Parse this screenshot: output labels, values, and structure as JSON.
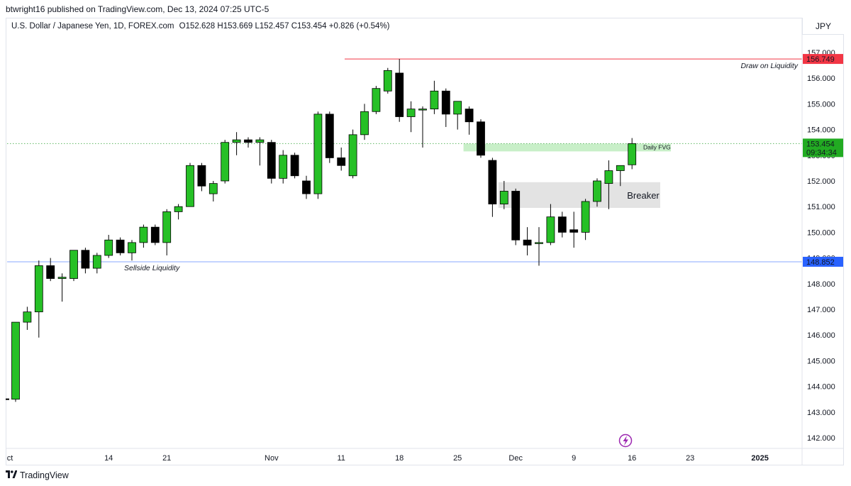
{
  "header": {
    "publisher": "btwright16 published on TradingView.com, Dec 13, 2024 07:25 UTC-5",
    "symbol": "U.S. Dollar / Japanese Yen, 1D, FOREX.com",
    "ohlc": {
      "o_label": "O",
      "o": "152.628",
      "h_label": "H",
      "h": "153.669",
      "l_label": "L",
      "l": "152.457",
      "c_label": "C",
      "c": "153.454",
      "change": "+0.826 (+0.54%)"
    },
    "currency": "JPY"
  },
  "footer": {
    "brand": "TradingView",
    "logo_icon": "tradingview-logo-icon"
  },
  "colors": {
    "up": "#26c026",
    "down": "#000000",
    "red_line": "#f23645",
    "blue_line": "#2962ff",
    "green_dotted": "#4caf50",
    "fvg_fill": "#c8efc8",
    "breaker_fill": "#e3e3e3",
    "lightning": "#9c27b0"
  },
  "chart_data": {
    "type": "candlestick",
    "ylim": [
      141.6,
      157.5
    ],
    "yticks": [
      142,
      143,
      144,
      145,
      146,
      147,
      148,
      149,
      150,
      151,
      152,
      153,
      154,
      155,
      156,
      157
    ],
    "ytick_labels": [
      "142.000",
      "143.000",
      "144.000",
      "145.000",
      "146.000",
      "147.000",
      "148.000",
      "149.000",
      "150.000",
      "151.000",
      "152.000",
      "153.000",
      "154.000",
      "155.000",
      "156.000",
      "157.000"
    ],
    "x_labels": [
      {
        "label": "ct",
        "index": -1
      },
      {
        "label": "14",
        "index": 8
      },
      {
        "label": "21",
        "index": 13
      },
      {
        "label": "Nov",
        "index": 22
      },
      {
        "label": "11",
        "index": 28
      },
      {
        "label": "18",
        "index": 33
      },
      {
        "label": "25",
        "index": 38
      },
      {
        "label": "Dec",
        "index": 43
      },
      {
        "label": "9",
        "index": 48
      },
      {
        "label": "16",
        "index": 53
      },
      {
        "label": "23",
        "index": 58
      },
      {
        "label": "2025",
        "index": 64
      }
    ],
    "candles": [
      {
        "o": 143.5,
        "h": 146.5,
        "l": 143.4,
        "c": 146.5
      },
      {
        "o": 146.5,
        "h": 147.1,
        "l": 146.2,
        "c": 146.9
      },
      {
        "o": 146.9,
        "h": 148.9,
        "l": 145.9,
        "c": 148.7
      },
      {
        "o": 148.7,
        "h": 149.0,
        "l": 148.1,
        "c": 148.2
      },
      {
        "o": 148.2,
        "h": 148.4,
        "l": 147.3,
        "c": 148.25
      },
      {
        "o": 148.2,
        "h": 149.3,
        "l": 148.1,
        "c": 149.3
      },
      {
        "o": 149.3,
        "h": 149.4,
        "l": 148.4,
        "c": 148.6
      },
      {
        "o": 148.6,
        "h": 149.2,
        "l": 148.4,
        "c": 149.1
      },
      {
        "o": 149.1,
        "h": 149.9,
        "l": 149.0,
        "c": 149.7
      },
      {
        "o": 149.7,
        "h": 149.8,
        "l": 149.1,
        "c": 149.2
      },
      {
        "o": 149.2,
        "h": 149.7,
        "l": 148.9,
        "c": 149.6
      },
      {
        "o": 149.6,
        "h": 150.3,
        "l": 149.4,
        "c": 150.2
      },
      {
        "o": 150.2,
        "h": 150.3,
        "l": 149.5,
        "c": 149.6
      },
      {
        "o": 149.6,
        "h": 150.9,
        "l": 149.1,
        "c": 150.8
      },
      {
        "o": 150.8,
        "h": 151.1,
        "l": 150.5,
        "c": 151.0
      },
      {
        "o": 151.0,
        "h": 152.7,
        "l": 151.0,
        "c": 152.6
      },
      {
        "o": 152.6,
        "h": 152.7,
        "l": 151.6,
        "c": 151.8
      },
      {
        "o": 151.5,
        "h": 152.0,
        "l": 151.2,
        "c": 151.9
      },
      {
        "o": 152.0,
        "h": 153.6,
        "l": 151.9,
        "c": 153.5
      },
      {
        "o": 153.5,
        "h": 153.9,
        "l": 153.0,
        "c": 153.6
      },
      {
        "o": 153.6,
        "h": 153.7,
        "l": 153.3,
        "c": 153.5
      },
      {
        "o": 153.5,
        "h": 153.7,
        "l": 152.6,
        "c": 153.6
      },
      {
        "o": 153.5,
        "h": 153.6,
        "l": 151.9,
        "c": 152.1
      },
      {
        "o": 152.1,
        "h": 153.2,
        "l": 151.9,
        "c": 153.0
      },
      {
        "o": 153.0,
        "h": 153.1,
        "l": 152.1,
        "c": 152.2
      },
      {
        "o": 152.0,
        "h": 152.2,
        "l": 151.3,
        "c": 151.5
      },
      {
        "o": 151.5,
        "h": 154.7,
        "l": 151.3,
        "c": 154.6
      },
      {
        "o": 154.6,
        "h": 154.7,
        "l": 152.7,
        "c": 152.9
      },
      {
        "o": 152.9,
        "h": 153.3,
        "l": 152.4,
        "c": 152.6
      },
      {
        "o": 152.2,
        "h": 154.0,
        "l": 152.1,
        "c": 153.8
      },
      {
        "o": 153.8,
        "h": 155.0,
        "l": 153.6,
        "c": 154.7
      },
      {
        "o": 154.7,
        "h": 155.7,
        "l": 154.6,
        "c": 155.6
      },
      {
        "o": 155.5,
        "h": 156.4,
        "l": 155.4,
        "c": 156.3
      },
      {
        "o": 156.2,
        "h": 156.75,
        "l": 154.3,
        "c": 154.5
      },
      {
        "o": 154.5,
        "h": 155.1,
        "l": 153.9,
        "c": 154.8
      },
      {
        "o": 154.8,
        "h": 154.9,
        "l": 153.3,
        "c": 154.8
      },
      {
        "o": 154.8,
        "h": 155.9,
        "l": 154.6,
        "c": 155.5
      },
      {
        "o": 155.5,
        "h": 155.6,
        "l": 154.1,
        "c": 154.6
      },
      {
        "o": 154.6,
        "h": 155.1,
        "l": 154.0,
        "c": 155.1
      },
      {
        "o": 154.8,
        "h": 154.9,
        "l": 153.8,
        "c": 154.3
      },
      {
        "o": 154.3,
        "h": 154.4,
        "l": 152.9,
        "c": 153.0
      },
      {
        "o": 152.8,
        "h": 152.9,
        "l": 150.6,
        "c": 151.1
      },
      {
        "o": 151.1,
        "h": 152.0,
        "l": 150.9,
        "c": 151.6
      },
      {
        "o": 151.6,
        "h": 151.7,
        "l": 149.5,
        "c": 149.7
      },
      {
        "o": 149.7,
        "h": 150.2,
        "l": 149.1,
        "c": 149.5
      },
      {
        "o": 149.6,
        "h": 150.2,
        "l": 148.7,
        "c": 149.6
      },
      {
        "o": 149.6,
        "h": 151.1,
        "l": 149.5,
        "c": 150.6
      },
      {
        "o": 150.6,
        "h": 150.8,
        "l": 149.8,
        "c": 150.0
      },
      {
        "o": 150.1,
        "h": 150.8,
        "l": 149.4,
        "c": 150.0
      },
      {
        "o": 150.0,
        "h": 151.3,
        "l": 149.7,
        "c": 151.2
      },
      {
        "o": 151.2,
        "h": 152.1,
        "l": 151.0,
        "c": 152.0
      },
      {
        "o": 151.9,
        "h": 152.8,
        "l": 150.9,
        "c": 152.4
      },
      {
        "o": 152.4,
        "h": 152.6,
        "l": 151.8,
        "c": 152.6
      },
      {
        "o": 152.628,
        "h": 153.669,
        "l": 152.457,
        "c": 153.454
      }
    ],
    "price_lines": [
      {
        "name": "red-resistance-line",
        "value": 156.749,
        "label": "156.749",
        "color": "#f23645",
        "style": "solid",
        "start_index": 29
      },
      {
        "name": "sellside-liquidity-line",
        "value": 148.852,
        "label": "148.852",
        "color": "#2962ff",
        "style": "solid",
        "start_index": -1
      },
      {
        "name": "current-price-line",
        "value": 153.454,
        "label": "153.454",
        "sublabel": "09:34:34",
        "color": "#4caf50",
        "style": "dotted",
        "start_index": -1
      }
    ],
    "zones": [
      {
        "name": "daily-fvg-zone",
        "y1": 153.15,
        "y2": 153.45,
        "start_index": 39,
        "end_index": 56,
        "label": "Daily FVG"
      },
      {
        "name": "breaker-zone",
        "y1": 150.95,
        "y2": 151.95,
        "start_index": 42,
        "end_index": 55,
        "label": "Breaker"
      }
    ],
    "annotations": [
      {
        "name": "draw-on-liquidity-label",
        "text": "Draw on Liquidity",
        "value": 156.5
      },
      {
        "name": "sellside-liquidity-label",
        "text": "Sellside Liquidity",
        "value": 148.65
      }
    ]
  }
}
